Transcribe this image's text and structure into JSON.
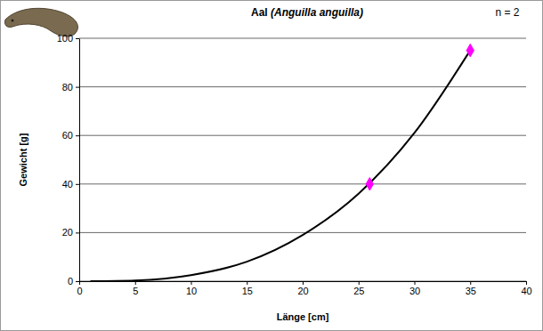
{
  "chart_data": {
    "type": "scatter",
    "title": "Aal (Anguilla anguilla)",
    "annotation": "n = 2",
    "x_label": "Länge [cm]",
    "y_label": "Gewicht [g]",
    "xlim": [
      0,
      40
    ],
    "xticks": [
      0,
      5,
      10,
      15,
      20,
      25,
      30,
      35,
      40
    ],
    "ylim": [
      0,
      100
    ],
    "yticks": [
      0,
      20,
      40,
      60,
      80,
      100
    ],
    "grid": true,
    "series": [
      {
        "type": "line",
        "color": "#000000",
        "marker": "none",
        "line_style": "solid",
        "x": [
          1,
          5,
          10,
          15,
          20,
          25,
          30,
          35
        ],
        "values": [
          0,
          0.3,
          2.5,
          8,
          19,
          36,
          61,
          95
        ]
      },
      {
        "type": "scatter",
        "color": "#ff00ff",
        "marker": "diamond",
        "x": [
          26,
          35
        ],
        "values": [
          40,
          95
        ]
      }
    ]
  }
}
